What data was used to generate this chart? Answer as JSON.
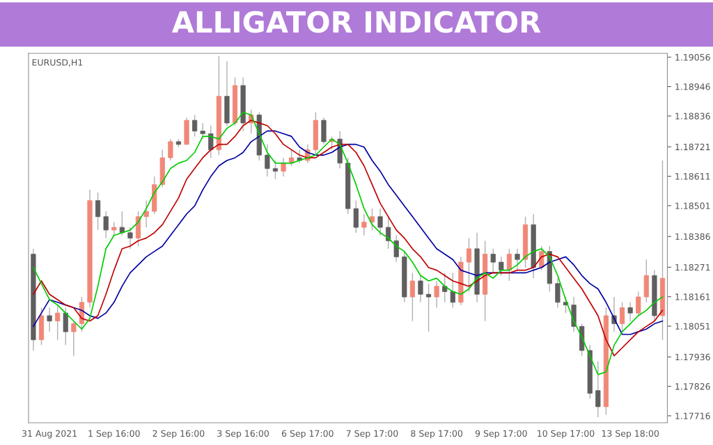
{
  "chart_data": {
    "type": "candlestick",
    "title": "ALLIGATOR INDICATOR",
    "subtitle": "EURUSD,H1",
    "categories": [
      null,
      null,
      "31 Aug 2021",
      null,
      null,
      null,
      null,
      null,
      null,
      null,
      "1 Sep 16:00",
      null,
      null,
      null,
      null,
      null,
      null,
      null,
      "2 Sep 16:00",
      null,
      null,
      null,
      null,
      null,
      null,
      null,
      "3 Sep 16:00",
      null,
      null,
      null,
      null,
      null,
      null,
      null,
      "6 Sep 17:00",
      null,
      null,
      null,
      null,
      null,
      null,
      null,
      "7 Sep 17:00",
      null,
      null,
      null,
      null,
      null,
      null,
      null,
      "8 Sep 17:00",
      null,
      null,
      null,
      null,
      null,
      null,
      null,
      "9 Sep 17:00",
      null,
      null,
      null,
      null,
      null,
      null,
      null,
      "10 Sep 17:00",
      null,
      null,
      null,
      null,
      null,
      null,
      null,
      "13 Sep 18:00",
      null,
      null,
      null,
      null
    ],
    "ohlc": [
      [
        1.1832,
        1.1834,
        1.1796,
        1.18
      ],
      [
        1.18,
        1.1812,
        1.1798,
        1.1809
      ],
      [
        1.1809,
        1.1812,
        1.1803,
        1.1807
      ],
      [
        1.1807,
        1.1813,
        1.18,
        1.181
      ],
      [
        1.181,
        1.1812,
        1.1798,
        1.1803
      ],
      [
        1.1803,
        1.1807,
        1.1794,
        1.1806
      ],
      [
        1.1806,
        1.1816,
        1.1803,
        1.1814
      ],
      [
        1.1814,
        1.1856,
        1.1812,
        1.1852
      ],
      [
        1.1852,
        1.1855,
        1.1841,
        1.1846
      ],
      [
        1.1846,
        1.1848,
        1.1838,
        1.1841
      ],
      [
        1.1841,
        1.1844,
        1.1839,
        1.1842
      ],
      [
        1.1842,
        1.1848,
        1.1839,
        1.184
      ],
      [
        1.184,
        1.1842,
        1.1834,
        1.1838
      ],
      [
        1.1838,
        1.1848,
        1.1835,
        1.1846
      ],
      [
        1.1846,
        1.1852,
        1.1842,
        1.1848
      ],
      [
        1.1848,
        1.1861,
        1.1847,
        1.1858
      ],
      [
        1.1858,
        1.1871,
        1.1857,
        1.1868
      ],
      [
        1.1868,
        1.1875,
        1.1867,
        1.1874
      ],
      [
        1.1874,
        1.1875,
        1.1872,
        1.1873
      ],
      [
        1.1873,
        1.1883,
        1.1873,
        1.1882
      ],
      [
        1.1882,
        1.1884,
        1.1876,
        1.1878
      ],
      [
        1.1878,
        1.1881,
        1.1875,
        1.1877
      ],
      [
        1.1877,
        1.188,
        1.1868,
        1.1871
      ],
      [
        1.1871,
        1.1906,
        1.1869,
        1.1891
      ],
      [
        1.1891,
        1.1904,
        1.188,
        1.1881
      ],
      [
        1.1881,
        1.1898,
        1.188,
        1.1895
      ],
      [
        1.1895,
        1.1898,
        1.1878,
        1.1881
      ],
      [
        1.1881,
        1.1886,
        1.1877,
        1.1884
      ],
      [
        1.1884,
        1.1885,
        1.1867,
        1.1869
      ],
      [
        1.1869,
        1.1873,
        1.1861,
        1.1864
      ],
      [
        1.1864,
        1.1867,
        1.186,
        1.1863
      ],
      [
        1.1863,
        1.1868,
        1.1861,
        1.1866
      ],
      [
        1.1866,
        1.1871,
        1.1865,
        1.1868
      ],
      [
        1.1868,
        1.1871,
        1.1866,
        1.1867
      ],
      [
        1.1867,
        1.1873,
        1.1866,
        1.1871
      ],
      [
        1.1871,
        1.1885,
        1.1869,
        1.1882
      ],
      [
        1.1882,
        1.1883,
        1.1873,
        1.1874
      ],
      [
        1.1874,
        1.1876,
        1.1871,
        1.1875
      ],
      [
        1.1875,
        1.1878,
        1.1864,
        1.1866
      ],
      [
        1.1866,
        1.1868,
        1.1847,
        1.1849
      ],
      [
        1.1849,
        1.1852,
        1.184,
        1.1842
      ],
      [
        1.1842,
        1.1847,
        1.1839,
        1.1844
      ],
      [
        1.1844,
        1.1849,
        1.1841,
        1.1846
      ],
      [
        1.1846,
        1.1849,
        1.1839,
        1.1842
      ],
      [
        1.1842,
        1.1846,
        1.1834,
        1.1837
      ],
      [
        1.1837,
        1.1839,
        1.1829,
        1.1831
      ],
      [
        1.1831,
        1.1833,
        1.1814,
        1.1816
      ],
      [
        1.1816,
        1.1825,
        1.1807,
        1.1822
      ],
      [
        1.1822,
        1.1824,
        1.1814,
        1.1817
      ],
      [
        1.1817,
        1.1821,
        1.1803,
        1.1816
      ],
      [
        1.1816,
        1.1822,
        1.1812,
        1.182
      ],
      [
        1.182,
        1.1825,
        1.1814,
        1.1818
      ],
      [
        1.1818,
        1.1825,
        1.1812,
        1.1814
      ],
      [
        1.1814,
        1.1831,
        1.1813,
        1.1829
      ],
      [
        1.1829,
        1.1838,
        1.1818,
        1.1834
      ],
      [
        1.1834,
        1.184,
        1.1814,
        1.1817
      ],
      [
        1.1817,
        1.1837,
        1.1807,
        1.1832
      ],
      [
        1.1832,
        1.1834,
        1.1825,
        1.1829
      ],
      [
        1.1829,
        1.1831,
        1.1824,
        1.1826
      ],
      [
        1.1826,
        1.1834,
        1.1822,
        1.1832
      ],
      [
        1.1832,
        1.1834,
        1.1826,
        1.183
      ],
      [
        1.183,
        1.1846,
        1.1827,
        1.1843
      ],
      [
        1.1843,
        1.1847,
        1.1823,
        1.1827
      ],
      [
        1.1827,
        1.1835,
        1.1826,
        1.1833
      ],
      [
        1.1833,
        1.1835,
        1.1818,
        1.1821
      ],
      [
        1.1821,
        1.1823,
        1.1812,
        1.1814
      ],
      [
        1.1814,
        1.1816,
        1.181,
        1.1813
      ],
      [
        1.1813,
        1.1816,
        1.1803,
        1.1805
      ],
      [
        1.1805,
        1.1806,
        1.1794,
        1.1796
      ],
      [
        1.1796,
        1.1798,
        1.1778,
        1.178
      ],
      [
        1.1781,
        1.1792,
        1.1771,
        1.1775
      ],
      [
        1.1775,
        1.1812,
        1.1772,
        1.1809
      ],
      [
        1.1809,
        1.1816,
        1.1803,
        1.1806
      ],
      [
        1.1806,
        1.1814,
        1.1803,
        1.1812
      ],
      [
        1.1812,
        1.1814,
        1.1807,
        1.181
      ],
      [
        1.181,
        1.1818,
        1.1809,
        1.1816
      ],
      [
        1.1816,
        1.183,
        1.1814,
        1.1824
      ],
      [
        1.1824,
        1.1826,
        1.1807,
        1.1809
      ],
      [
        1.1809,
        1.1867,
        1.18,
        1.1823
      ]
    ],
    "series": [
      {
        "type": "line",
        "color": "#0000a0",
        "values": [
          1.1805,
          1.181,
          1.1815,
          1.1814,
          1.1813,
          1.1812,
          1.1811,
          1.1809,
          1.1808,
          1.181,
          1.1814,
          1.182,
          1.1825,
          1.1828,
          1.1831,
          1.1833,
          1.1835,
          1.1839,
          1.1843,
          1.1847,
          1.185,
          1.1856,
          1.1861,
          1.1865,
          1.1867,
          1.1868,
          1.187,
          1.1874,
          1.1876,
          1.1878,
          1.1878,
          1.1877,
          1.1876,
          1.1872,
          1.187,
          1.1869,
          1.1869,
          1.187,
          1.1872,
          1.1873,
          1.1873,
          1.1872,
          1.1867,
          1.1863,
          1.1858,
          1.1854,
          1.185,
          1.1846,
          1.1842,
          1.1838,
          1.1834,
          1.1832,
          1.183,
          1.1826,
          1.1825,
          1.1824,
          1.1825,
          1.1825,
          1.1825,
          1.1825,
          1.1825,
          1.1825,
          1.1826,
          1.1827,
          1.1829,
          1.183,
          1.1831,
          1.1828,
          1.1824,
          1.1821,
          1.1819,
          1.1814,
          1.1808,
          1.1802,
          1.1802,
          1.1803,
          1.1804,
          1.1806,
          1.1807
        ]
      },
      {
        "type": "line",
        "color": "#c00000",
        "values": [
          1.1817,
          1.1822,
          1.1817,
          1.1815,
          1.1813,
          1.1812,
          1.1808,
          1.1807,
          1.1809,
          1.1817,
          1.1826,
          1.1834,
          1.1835,
          1.1837,
          1.1838,
          1.184,
          1.1843,
          1.1848,
          1.1853,
          1.186,
          1.1864,
          1.1868,
          1.1871,
          1.1873,
          1.1873,
          1.1876,
          1.188,
          1.1882,
          1.1881,
          1.188,
          1.1877,
          1.1873,
          1.1871,
          1.1869,
          1.1868,
          1.1868,
          1.187,
          1.1872,
          1.1873,
          1.1873,
          1.187,
          1.1865,
          1.1858,
          1.1851,
          1.1846,
          1.1841,
          1.1838,
          1.1834,
          1.1831,
          1.1827,
          1.1826,
          1.1824,
          1.1822,
          1.1821,
          1.182,
          1.1822,
          1.1824,
          1.1825,
          1.1825,
          1.1825,
          1.1826,
          1.1826,
          1.1827,
          1.1831,
          1.1832,
          1.1831,
          1.1827,
          1.1823,
          1.1819,
          1.1814,
          1.1809,
          1.18,
          1.1794,
          1.1797,
          1.18,
          1.1803,
          1.1805,
          1.1807,
          1.1811
        ]
      },
      {
        "type": "line",
        "color": "#00cc00",
        "values": [
          1.1827,
          1.1821,
          1.1815,
          1.1813,
          1.181,
          1.1807,
          1.1804,
          1.1808,
          1.182,
          1.1834,
          1.1839,
          1.184,
          1.1841,
          1.1844,
          1.1849,
          1.1855,
          1.1859,
          1.1864,
          1.1866,
          1.1867,
          1.187,
          1.1876,
          1.1876,
          1.1875,
          1.1879,
          1.1881,
          1.1885,
          1.1884,
          1.1877,
          1.187,
          1.1866,
          1.1866,
          1.1866,
          1.1867,
          1.1868,
          1.1869,
          1.1872,
          1.1875,
          1.1873,
          1.1866,
          1.1858,
          1.1849,
          1.1843,
          1.184,
          1.1838,
          1.1835,
          1.1833,
          1.1829,
          1.1824,
          1.1822,
          1.1823,
          1.182,
          1.1818,
          1.1817,
          1.1819,
          1.1823,
          1.1825,
          1.1823,
          1.1826,
          1.1826,
          1.1828,
          1.1831,
          1.1833,
          1.1834,
          1.1831,
          1.1824,
          1.1815,
          1.1807,
          1.1801,
          1.1794,
          1.1787,
          1.1788,
          1.1798,
          1.1803,
          1.1806,
          1.1809,
          1.1811,
          1.1814,
          1.1816
        ]
      }
    ],
    "ylim": [
      1.1769,
      1.1907
    ],
    "yticks": [
      1.19056,
      1.18946,
      1.18836,
      1.18721,
      1.18611,
      1.18501,
      1.18386,
      1.18271,
      1.18161,
      1.18051,
      1.17936,
      1.17826,
      1.17716
    ],
    "grid": false,
    "legend": false
  }
}
